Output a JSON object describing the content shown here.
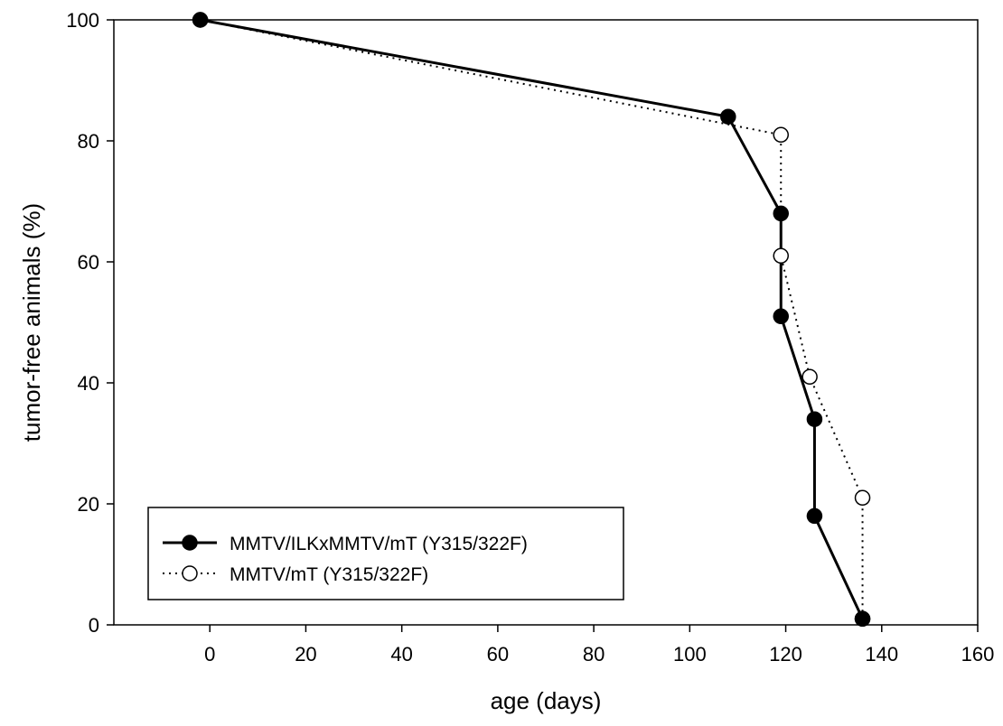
{
  "chart_data": {
    "type": "line",
    "title": "",
    "xlabel": "age (days)",
    "ylabel": "tumor-free animals (%)",
    "xlim": [
      -20,
      160
    ],
    "ylim": [
      0,
      100
    ],
    "xticks": [
      0,
      20,
      40,
      60,
      80,
      100,
      120,
      140,
      160
    ],
    "yticks": [
      0,
      20,
      40,
      60,
      80,
      100
    ],
    "grid": false,
    "legend": "bottom-left",
    "series": [
      {
        "name": "MMTV/ILKxMMTV/mT (Y315/322F)",
        "marker": "filled-circle",
        "line_style": "solid",
        "color": "#000000",
        "x": [
          -2,
          108,
          119,
          119,
          126,
          126,
          136
        ],
        "y": [
          100,
          84,
          68,
          51,
          34,
          18,
          1
        ]
      },
      {
        "name": "MMTV/mT (Y315/322F)",
        "marker": "open-circle",
        "line_style": "dotted",
        "color": "#000000",
        "x": [
          -2,
          119,
          119,
          125,
          136,
          136
        ],
        "y": [
          100,
          81,
          61,
          41,
          21,
          1
        ]
      }
    ]
  }
}
